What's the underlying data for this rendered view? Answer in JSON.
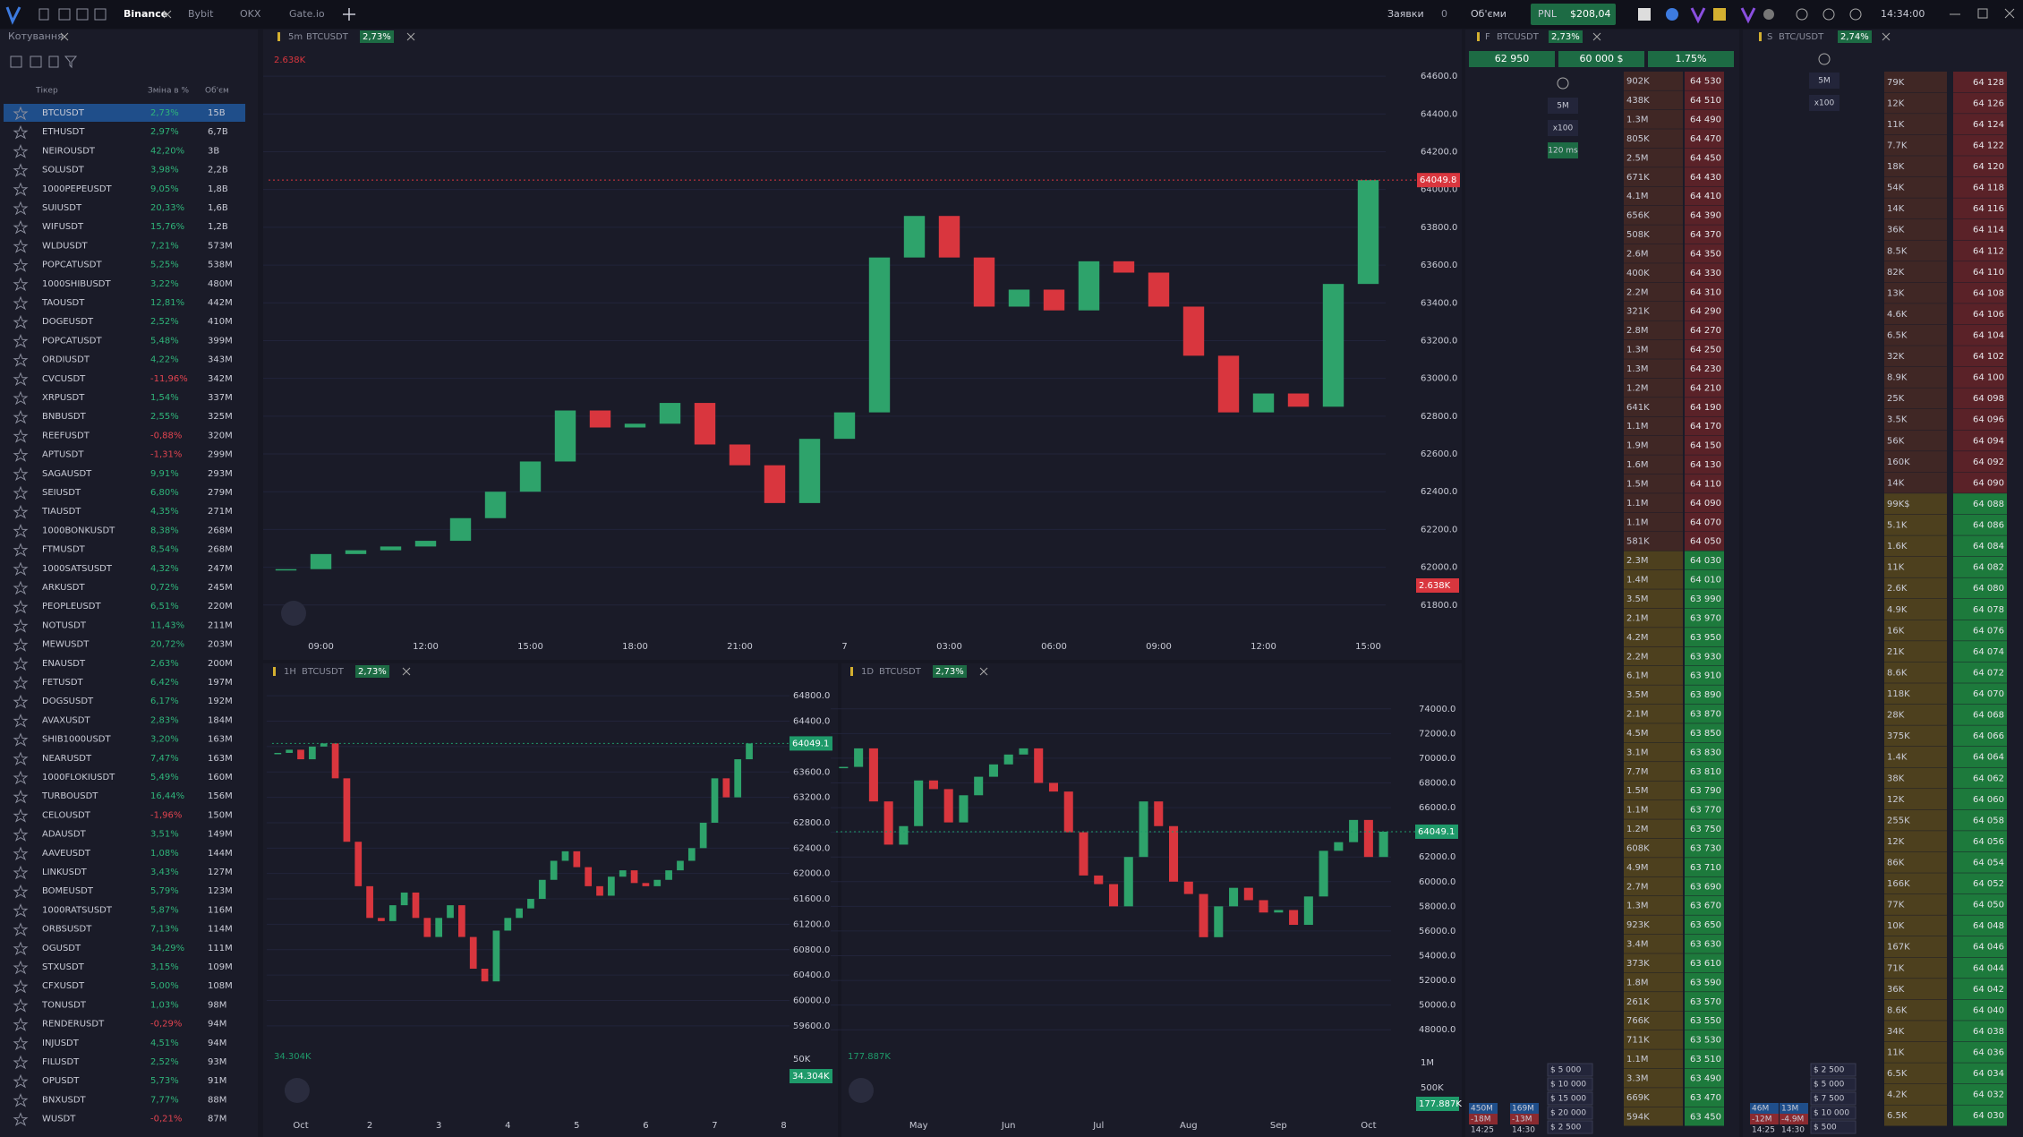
{
  "topbar": {
    "tabs": [
      "Binance",
      "Bybit",
      "OKX",
      "Gate.io"
    ],
    "orders_label": "Заявки",
    "orders_count": "0",
    "volumes_label": "Об'єми",
    "pnl_label": "PNL",
    "pnl_value": "$208,04",
    "clock": "14:34:00"
  },
  "watchlist": {
    "title": "Котування",
    "columns": [
      "Тікер",
      "Зміна в %",
      "Об'єм"
    ],
    "rows": [
      [
        "BTCUSDT",
        "2,73%",
        "15B"
      ],
      [
        "ETHUSDT",
        "2,97%",
        "6,7B"
      ],
      [
        "NEIROUSDT",
        "42,20%",
        "3B"
      ],
      [
        "SOLUSDT",
        "3,98%",
        "2,2B"
      ],
      [
        "1000PEPEUSDT",
        "9,05%",
        "1,8B"
      ],
      [
        "SUIUSDT",
        "20,33%",
        "1,6B"
      ],
      [
        "WIFUSDT",
        "15,76%",
        "1,2B"
      ],
      [
        "WLDUSDT",
        "7,21%",
        "573M"
      ],
      [
        "POPCATUSDT",
        "5,25%",
        "538M"
      ],
      [
        "1000SHIBUSDT",
        "3,22%",
        "480M"
      ],
      [
        "TAOUSDT",
        "12,81%",
        "442M"
      ],
      [
        "DOGEUSDT",
        "2,52%",
        "410M"
      ],
      [
        "POPCATUSDT",
        "5,48%",
        "399M"
      ],
      [
        "ORDIUSDT",
        "4,22%",
        "343M"
      ],
      [
        "CVCUSDT",
        "-11,96%",
        "342M"
      ],
      [
        "XRPUSDT",
        "1,54%",
        "337M"
      ],
      [
        "BNBUSDT",
        "2,55%",
        "325M"
      ],
      [
        "REEFUSDT",
        "-0,88%",
        "320M"
      ],
      [
        "APTUSDT",
        "-1,31%",
        "299M"
      ],
      [
        "SAGAUSDT",
        "9,91%",
        "293M"
      ],
      [
        "SEIUSDT",
        "6,80%",
        "279M"
      ],
      [
        "TIAUSDT",
        "4,35%",
        "271M"
      ],
      [
        "1000BONKUSDT",
        "8,38%",
        "268M"
      ],
      [
        "FTMUSDT",
        "8,54%",
        "268M"
      ],
      [
        "1000SATSUSDT",
        "4,32%",
        "247M"
      ],
      [
        "ARKUSDT",
        "0,72%",
        "245M"
      ],
      [
        "PEOPLEUSDT",
        "6,51%",
        "220M"
      ],
      [
        "NOTUSDT",
        "11,43%",
        "211M"
      ],
      [
        "MEWUSDT",
        "20,72%",
        "203M"
      ],
      [
        "ENAUSDT",
        "2,63%",
        "200M"
      ],
      [
        "FETUSDT",
        "6,42%",
        "197M"
      ],
      [
        "DOGSUSDT",
        "6,17%",
        "192M"
      ],
      [
        "AVAXUSDT",
        "2,83%",
        "184M"
      ],
      [
        "SHIB1000USDT",
        "3,20%",
        "163M"
      ],
      [
        "NEARUSDT",
        "7,47%",
        "163M"
      ],
      [
        "1000FLOKIUSDT",
        "5,49%",
        "160M"
      ],
      [
        "TURBOUSDT",
        "16,44%",
        "156M"
      ],
      [
        "CELOUSDT",
        "-1,96%",
        "150M"
      ],
      [
        "ADAUSDT",
        "3,51%",
        "149M"
      ],
      [
        "AAVEUSDT",
        "1,08%",
        "144M"
      ],
      [
        "LINKUSDT",
        "3,43%",
        "127M"
      ],
      [
        "BOMEUSDT",
        "5,79%",
        "123M"
      ],
      [
        "1000RATSUSDT",
        "5,87%",
        "116M"
      ],
      [
        "ORBSUSDT",
        "7,13%",
        "114M"
      ],
      [
        "OGUSDT",
        "34,29%",
        "111M"
      ],
      [
        "STXUSDT",
        "3,15%",
        "109M"
      ],
      [
        "CFXUSDT",
        "5,00%",
        "108M"
      ],
      [
        "TONUSDT",
        "1,03%",
        "98M"
      ],
      [
        "RENDERUSDT",
        "-0,29%",
        "94M"
      ],
      [
        "INJUSDT",
        "4,51%",
        "94M"
      ],
      [
        "FILUSDT",
        "2,52%",
        "93M"
      ],
      [
        "OPUSDT",
        "5,73%",
        "91M"
      ],
      [
        "BNXUSDT",
        "7,77%",
        "88M"
      ],
      [
        "WUSDT",
        "-0,21%",
        "87M"
      ]
    ]
  },
  "chart_data": [
    {
      "type": "candlestick",
      "interval": "5m",
      "symbol": "BTCUSDT",
      "change": "2,73%",
      "up_color": "#2ea36b",
      "down_color": "#d9363e",
      "categories": [
        null,
        "09:00",
        null,
        null,
        "12:00",
        null,
        null,
        "15:00",
        null,
        null,
        "18:00",
        null,
        null,
        "21:00",
        null,
        null,
        "7",
        null,
        null,
        "03:00",
        null,
        null,
        "06:00",
        null,
        null,
        "09:00",
        null,
        null,
        "12:00",
        null,
        null,
        "15:00"
      ],
      "values": [
        61990,
        62070,
        62090,
        62110,
        62140,
        62260,
        62400,
        62560,
        62830,
        62740,
        62760,
        62870,
        62650,
        62540,
        62340,
        62680,
        62820,
        63640,
        63860,
        63640,
        63380,
        63470,
        63360,
        63620,
        63560,
        63380,
        63120,
        62820,
        62920,
        62850,
        63500,
        64049.8
      ],
      "ylim": [
        61600,
        64700
      ],
      "yticks": [
        {
          "value": 61800,
          "label": "61800.0"
        },
        {
          "value": 62000,
          "label": "62000.0"
        },
        {
          "value": 62200,
          "label": "62200.0"
        },
        {
          "value": 62400,
          "label": "62400.0"
        },
        {
          "value": 62600,
          "label": "62600.0"
        },
        {
          "value": 62800,
          "label": "62800.0"
        },
        {
          "value": 63000,
          "label": "63000.0"
        },
        {
          "value": 63200,
          "label": "63200.0"
        },
        {
          "value": 63400,
          "label": "63400.0"
        },
        {
          "value": 63600,
          "label": "63600.0"
        },
        {
          "value": 63800,
          "label": "63800.0"
        },
        {
          "value": 64000,
          "label": "64000.0"
        },
        {
          "value": 64200,
          "label": "64200.0"
        },
        {
          "value": 64400,
          "label": "64400.0"
        },
        {
          "value": 64600,
          "label": "64600.0"
        }
      ],
      "grid": true,
      "last_price": 64049.8,
      "last_price_color": "#d9363e",
      "volume_label": "2.638K",
      "volume_color": "#d9363e",
      "volume_ticks": []
    },
    {
      "type": "candlestick",
      "interval": "1H",
      "symbol": "BTCUSDT",
      "change": "2,73%",
      "up_color": "#2ea36b",
      "down_color": "#d9363e",
      "categories": [
        null,
        null,
        "Oct",
        null,
        null,
        null,
        null,
        null,
        "2",
        null,
        null,
        null,
        null,
        null,
        "3",
        null,
        null,
        null,
        null,
        null,
        "4",
        null,
        null,
        null,
        null,
        null,
        "5",
        null,
        null,
        null,
        null,
        null,
        "6",
        null,
        null,
        null,
        null,
        null,
        "7",
        null,
        null,
        null,
        null,
        null,
        "8"
      ],
      "values": [
        63900,
        63950,
        63800,
        64000,
        64050,
        63500,
        62500,
        61800,
        61300,
        61250,
        61500,
        61700,
        61300,
        61000,
        61300,
        61500,
        61000,
        60500,
        60300,
        61100,
        61300,
        61450,
        61600,
        61900,
        62200,
        62350,
        62100,
        61800,
        61650,
        61950,
        62050,
        61850,
        61800,
        61900,
        62050,
        62200,
        62400,
        62800,
        63500,
        63200,
        63800,
        64049.1,
        null,
        null,
        null
      ],
      "ylim": [
        59400,
        65000
      ],
      "yticks": [
        {
          "value": 59600,
          "label": "59600.0"
        },
        {
          "value": 60000,
          "label": "60000.0"
        },
        {
          "value": 60400,
          "label": "60400.0"
        },
        {
          "value": 60800,
          "label": "60800.0"
        },
        {
          "value": 61200,
          "label": "61200.0"
        },
        {
          "value": 61600,
          "label": "61600.0"
        },
        {
          "value": 62000,
          "label": "62000.0"
        },
        {
          "value": 62400,
          "label": "62400.0"
        },
        {
          "value": 62800,
          "label": "62800.0"
        },
        {
          "value": 63200,
          "label": "63200.0"
        },
        {
          "value": 63600,
          "label": "63600.0"
        },
        {
          "value": 64000,
          "label": "64000.0"
        },
        {
          "value": 64400,
          "label": "64400.0"
        },
        {
          "value": 64800,
          "label": "64800.0"
        }
      ],
      "grid": true,
      "last_price": 64049.1,
      "last_price_color": "#1f9a6a",
      "volume_label": "34.304K",
      "volume_color": "#1f9a6a",
      "volume_ticks": [
        {
          "value": 50000,
          "label": "50K"
        }
      ]
    },
    {
      "type": "candlestick",
      "interval": "1D",
      "symbol": "BTCUSDT",
      "change": "2,73%",
      "up_color": "#2ea36b",
      "down_color": "#d9363e",
      "categories": [
        null,
        null,
        null,
        null,
        null,
        "May",
        null,
        null,
        null,
        null,
        null,
        "Jun",
        null,
        null,
        null,
        null,
        null,
        "Jul",
        null,
        null,
        null,
        null,
        null,
        "Aug",
        null,
        null,
        null,
        null,
        null,
        "Sep",
        null,
        null,
        null,
        null,
        null,
        "Oct",
        null
      ],
      "values": [
        69300,
        70800,
        66500,
        63000,
        64500,
        68200,
        67500,
        64800,
        67000,
        68500,
        69500,
        70300,
        70800,
        68000,
        67300,
        64000,
        60500,
        59800,
        58000,
        62000,
        66500,
        64500,
        60000,
        59000,
        55500,
        58000,
        59500,
        58500,
        57500,
        57700,
        56500,
        58800,
        62500,
        63200,
        65000,
        62000,
        64049.1
      ],
      "ylim": [
        47000,
        75000
      ],
      "yticks": [
        {
          "value": 48000,
          "label": "48000.0"
        },
        {
          "value": 50000,
          "label": "50000.0"
        },
        {
          "value": 52000,
          "label": "52000.0"
        },
        {
          "value": 54000,
          "label": "54000.0"
        },
        {
          "value": 56000,
          "label": "56000.0"
        },
        {
          "value": 58000,
          "label": "58000.0"
        },
        {
          "value": 60000,
          "label": "60000.0"
        },
        {
          "value": 62000,
          "label": "62000.0"
        },
        {
          "value": 64000,
          "label": "64000.0"
        },
        {
          "value": 66000,
          "label": "66000.0"
        },
        {
          "value": 68000,
          "label": "68000.0"
        },
        {
          "value": 70000,
          "label": "70000.0"
        },
        {
          "value": 72000,
          "label": "72000.0"
        },
        {
          "value": 74000,
          "label": "74000.0"
        }
      ],
      "grid": true,
      "last_price": 64049.1,
      "last_price_color": "#1f9a6a",
      "volume_label": "177.887K",
      "volume_color": "#1f9a6a",
      "volume_ticks": [
        {
          "value": 500000,
          "label": "500K"
        },
        {
          "value": 1000000,
          "label": "1M"
        }
      ]
    }
  ],
  "order_books": [
    {
      "market": "F",
      "symbol": "BTCUSDT",
      "change": "2,73%",
      "stats": [
        "62 950",
        "60 000 $",
        "1.75%"
      ],
      "controls": [
        "5M",
        "x100",
        "120 ms"
      ],
      "asks": [
        [
          "64 530",
          "902K"
        ],
        [
          "64 510",
          "438K"
        ],
        [
          "64 490",
          "1.3M"
        ],
        [
          "64 470",
          "805K"
        ],
        [
          "64 450",
          "2.5M"
        ],
        [
          "64 430",
          "671K"
        ],
        [
          "64 410",
          "4.1M"
        ],
        [
          "64 390",
          "656K"
        ],
        [
          "64 370",
          "508K"
        ],
        [
          "64 350",
          "2.6M"
        ],
        [
          "64 330",
          "400K"
        ],
        [
          "64 310",
          "2.2M"
        ],
        [
          "64 290",
          "321K"
        ],
        [
          "64 270",
          "2.8M"
        ],
        [
          "64 250",
          "1.3M"
        ],
        [
          "64 230",
          "1.3M"
        ],
        [
          "64 210",
          "1.2M"
        ],
        [
          "64 190",
          "641K"
        ],
        [
          "64 170",
          "1.1M"
        ],
        [
          "64 150",
          "1.9M"
        ],
        [
          "64 130",
          "1.6M"
        ],
        [
          "64 110",
          "1.5M"
        ],
        [
          "64 090",
          "1.1M"
        ],
        [
          "64 070",
          "1.1M"
        ],
        [
          "64 050",
          "581K"
        ]
      ],
      "bids": [
        [
          "64 030",
          "2.3M"
        ],
        [
          "64 010",
          "1.4M"
        ],
        [
          "63 990",
          "3.5M"
        ],
        [
          "63 970",
          "2.1M"
        ],
        [
          "63 950",
          "4.2M"
        ],
        [
          "63 930",
          "2.2M"
        ],
        [
          "63 910",
          "6.1M"
        ],
        [
          "63 890",
          "3.5M"
        ],
        [
          "63 870",
          "2.1M"
        ],
        [
          "63 850",
          "4.5M"
        ],
        [
          "63 830",
          "3.1M"
        ],
        [
          "63 810",
          "7.7M"
        ],
        [
          "63 790",
          "1.5M"
        ],
        [
          "63 770",
          "1.1M"
        ],
        [
          "63 750",
          "1.2M"
        ],
        [
          "63 730",
          "608K"
        ],
        [
          "63 710",
          "4.9M"
        ],
        [
          "63 690",
          "2.7M"
        ],
        [
          "63 670",
          "1.3M"
        ],
        [
          "63 650",
          "923K"
        ],
        [
          "63 630",
          "3.4M"
        ],
        [
          "63 610",
          "373K"
        ],
        [
          "63 590",
          "1.8M"
        ],
        [
          "63 570",
          "261K"
        ],
        [
          "63 550",
          "766K"
        ],
        [
          "63 530",
          "711K"
        ],
        [
          "63 510",
          "1.1M"
        ],
        [
          "63 490",
          "3.3M"
        ],
        [
          "63 470",
          "669K"
        ],
        [
          "63 450",
          "594K"
        ]
      ],
      "order_sizes": [
        "$ 5 000",
        "$ 10 000",
        "$ 15 000",
        "$ 20 000",
        "$ 2 500"
      ],
      "delta": [
        [
          "450M",
          "169M"
        ],
        [
          "-18M",
          "-13M"
        ],
        [
          "14:25",
          "14:30"
        ]
      ]
    },
    {
      "market": "S",
      "symbol": "BTC/USDT",
      "change": "2,74%",
      "stats": [],
      "controls": [
        "5M",
        "x100"
      ],
      "asks": [
        [
          "64 128",
          "79K"
        ],
        [
          "64 126",
          "12K"
        ],
        [
          "64 124",
          "11K"
        ],
        [
          "64 122",
          "7.7K"
        ],
        [
          "64 120",
          "18K"
        ],
        [
          "64 118",
          "54K"
        ],
        [
          "64 116",
          "14K"
        ],
        [
          "64 114",
          "36K"
        ],
        [
          "64 112",
          "8.5K"
        ],
        [
          "64 110",
          "82K"
        ],
        [
          "64 108",
          "13K"
        ],
        [
          "64 106",
          "4.6K"
        ],
        [
          "64 104",
          "6.5K"
        ],
        [
          "64 102",
          "32K"
        ],
        [
          "64 100",
          "8.9K"
        ],
        [
          "64 098",
          "25K"
        ],
        [
          "64 096",
          "3.5K"
        ],
        [
          "64 094",
          "56K"
        ],
        [
          "64 092",
          "160K"
        ],
        [
          "64 090",
          "14K"
        ]
      ],
      "bids": [
        [
          "64 088",
          "99K$"
        ],
        [
          "64 086",
          "5.1K"
        ],
        [
          "64 084",
          "1.6K"
        ],
        [
          "64 082",
          "11K"
        ],
        [
          "64 080",
          "2.6K"
        ],
        [
          "64 078",
          "4.9K"
        ],
        [
          "64 076",
          "16K"
        ],
        [
          "64 074",
          "21K"
        ],
        [
          "64 072",
          "8.6K"
        ],
        [
          "64 070",
          "118K"
        ],
        [
          "64 068",
          "28K"
        ],
        [
          "64 066",
          "375K"
        ],
        [
          "64 064",
          "1.4K"
        ],
        [
          "64 062",
          "38K"
        ],
        [
          "64 060",
          "12K"
        ],
        [
          "64 058",
          "255K"
        ],
        [
          "64 056",
          "12K"
        ],
        [
          "64 054",
          "86K"
        ],
        [
          "64 052",
          "166K"
        ],
        [
          "64 050",
          "77K"
        ],
        [
          "64 048",
          "10K"
        ],
        [
          "64 046",
          "167K"
        ],
        [
          "64 044",
          "71K"
        ],
        [
          "64 042",
          "36K"
        ],
        [
          "64 040",
          "8.6K"
        ],
        [
          "64 038",
          "34K"
        ],
        [
          "64 036",
          "11K"
        ],
        [
          "64 034",
          "6.5K"
        ],
        [
          "64 032",
          "4.2K"
        ],
        [
          "64 030",
          "6.5K"
        ]
      ],
      "order_sizes": [
        "$ 2 500",
        "$ 5 000",
        "$ 7 500",
        "$ 10 000",
        "$ 500"
      ],
      "delta": [
        [
          "46M",
          "13M"
        ],
        [
          "-12M",
          "-4.9M"
        ],
        [
          "14:25",
          "14:30"
        ]
      ]
    }
  ]
}
